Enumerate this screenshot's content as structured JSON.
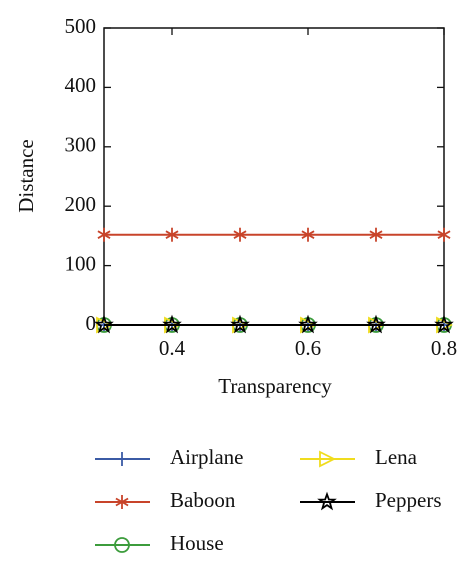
{
  "chart_data": {
    "type": "line",
    "x_label": "Transparency",
    "y_label": "Distance",
    "x": [
      0.3,
      0.4,
      0.5,
      0.6,
      0.7,
      0.8
    ],
    "xlim": [
      0.3,
      0.8
    ],
    "xticks": [
      0.4,
      0.6,
      0.8
    ],
    "ylim": [
      0,
      500
    ],
    "yticks": [
      0,
      100,
      200,
      300,
      400,
      500
    ],
    "series": [
      {
        "name": "Airplane",
        "color": "#3b5ba5",
        "marker": "plus",
        "values": [
          0,
          0,
          0,
          0,
          0,
          0
        ]
      },
      {
        "name": "Baboon",
        "color": "#c8442a",
        "marker": "asterisk",
        "values": [
          152,
          152,
          152,
          152,
          152,
          152
        ]
      },
      {
        "name": "House",
        "color": "#3c9c3c",
        "marker": "circle",
        "values": [
          0,
          0,
          0,
          0,
          0,
          0
        ]
      },
      {
        "name": "Lena",
        "color": "#f0dc1e",
        "marker": "triangle",
        "values": [
          0,
          0,
          0,
          0,
          0,
          0
        ]
      },
      {
        "name": "Peppers",
        "color": "#000000",
        "marker": "star",
        "values": [
          0,
          0,
          0,
          0,
          0,
          0
        ]
      }
    ]
  }
}
